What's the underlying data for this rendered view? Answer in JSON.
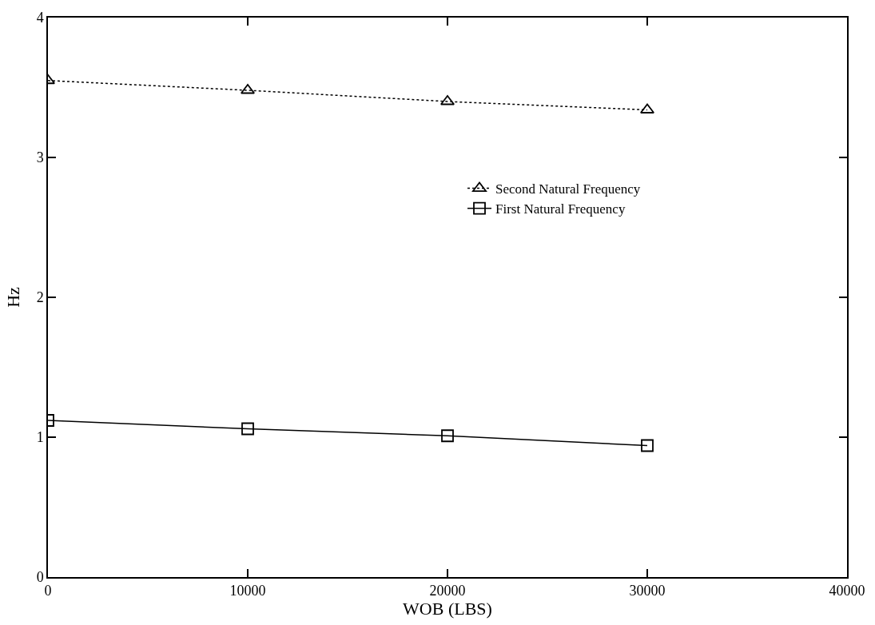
{
  "chart_data": {
    "type": "line",
    "xlabel": "WOB (LBS)",
    "ylabel": "Hz",
    "x": [
      0,
      10000,
      20000,
      30000
    ],
    "series": [
      {
        "name": "Second Natural Frequency",
        "color": "#000000",
        "values": [
          3.55,
          3.48,
          3.4,
          3.34
        ],
        "marker": "triangle",
        "line_style": "dotted"
      },
      {
        "name": "First Natural Frequency",
        "color": "#000000",
        "values": [
          1.12,
          1.06,
          1.01,
          0.94
        ],
        "marker": "square",
        "line_style": "solid"
      }
    ],
    "xlim": [
      0,
      40000
    ],
    "xticks": [
      0,
      10000,
      20000,
      30000,
      40000
    ],
    "ylim": [
      0,
      4
    ],
    "yticks": [
      0,
      1,
      2,
      3,
      4
    ],
    "legend": "right"
  }
}
